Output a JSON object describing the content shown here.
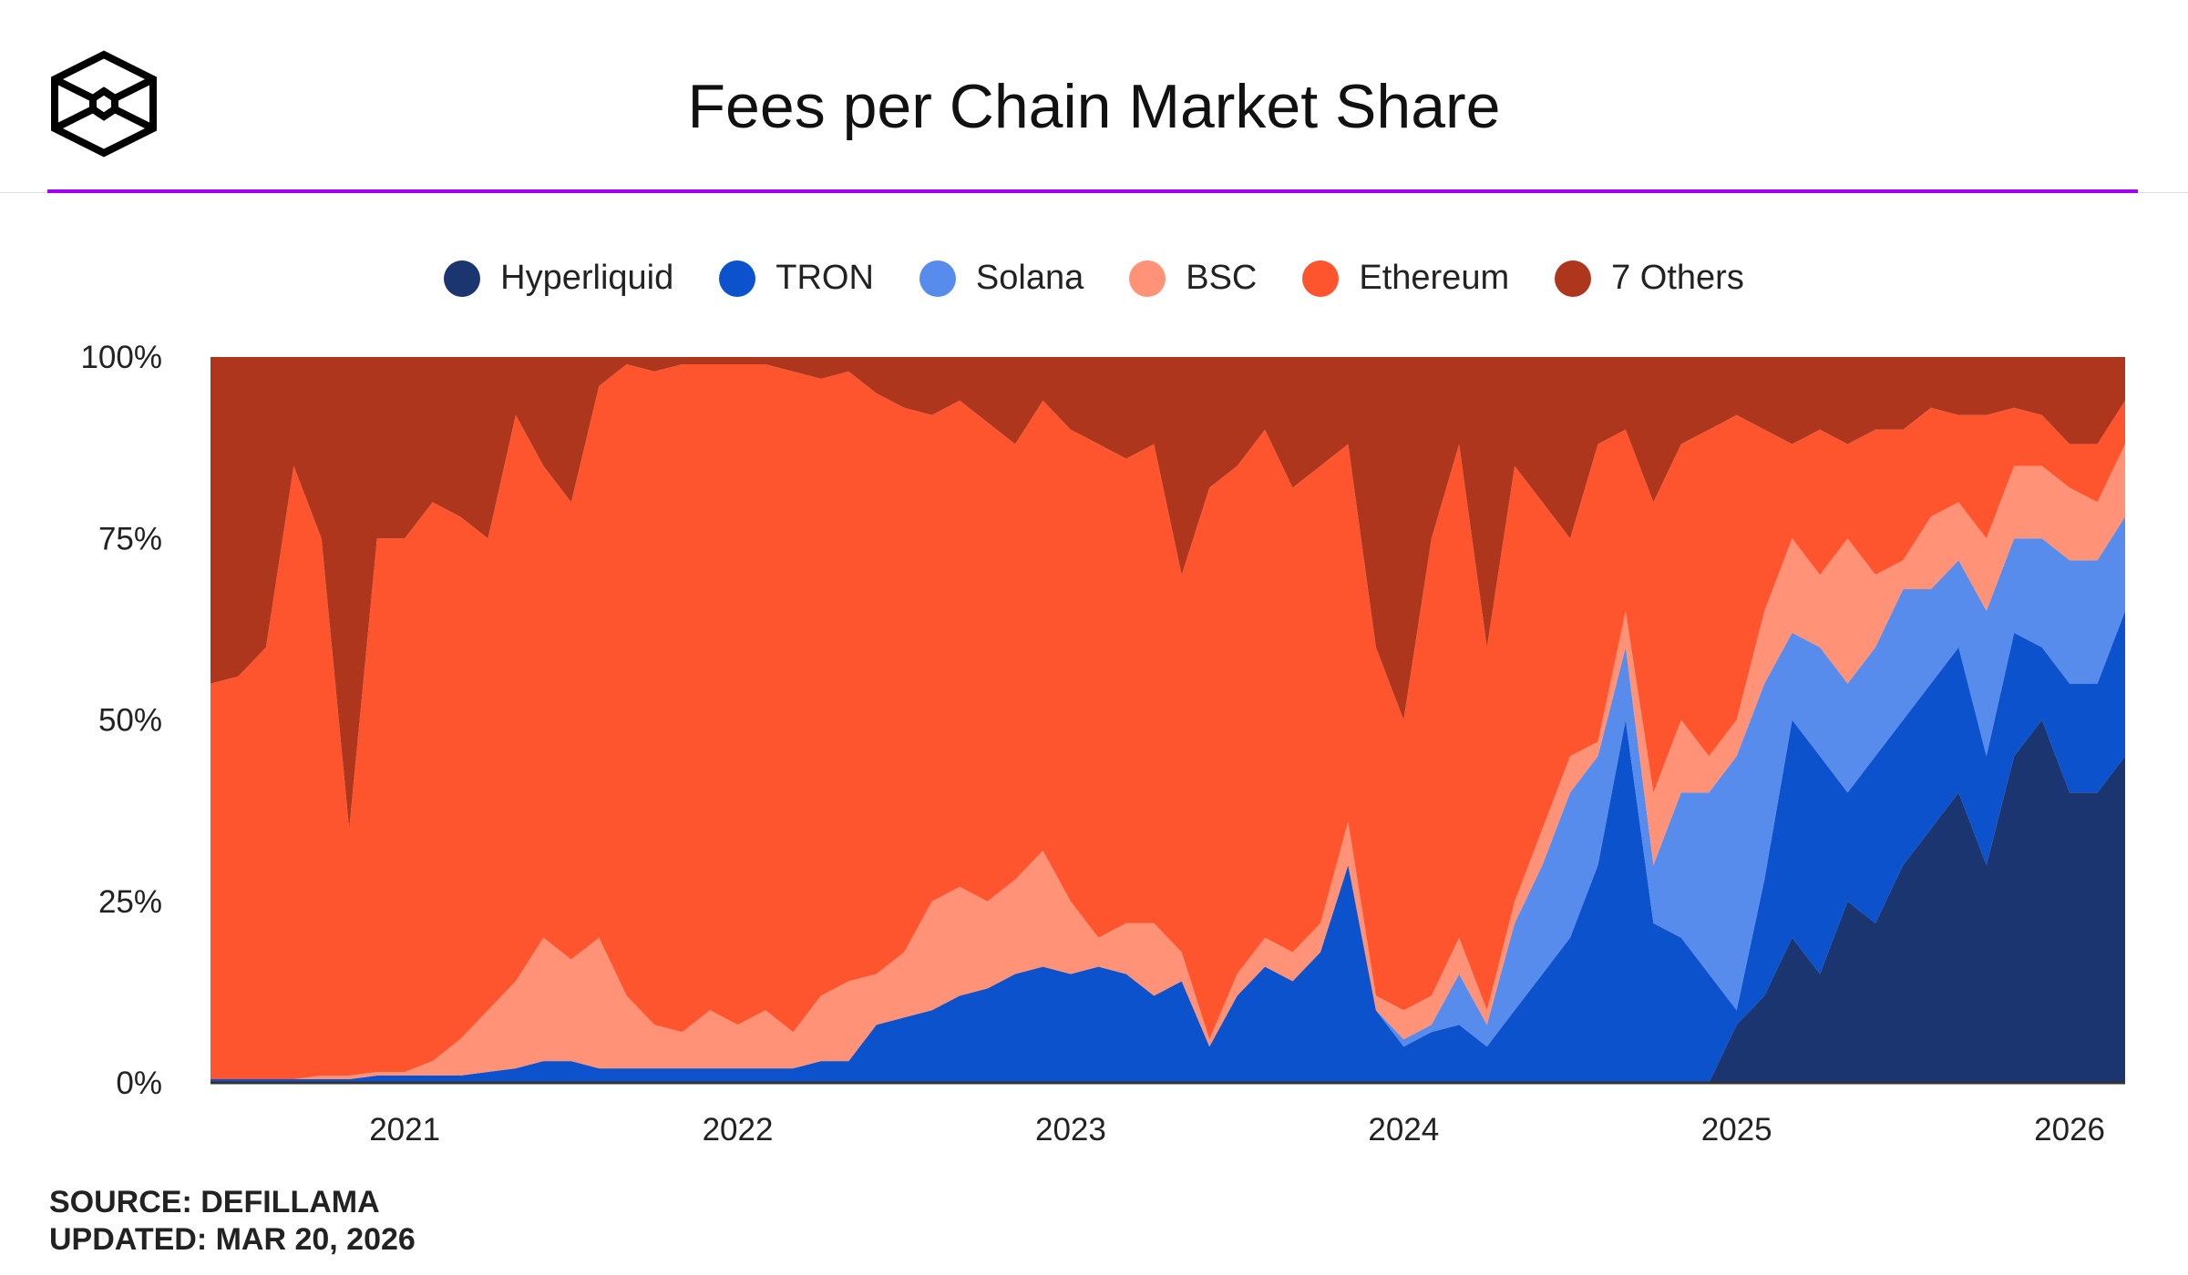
{
  "title": "Fees per Chain Market Share",
  "logo": {
    "name": "cube-logo"
  },
  "source": {
    "line1": "SOURCE: DEFILLAMA",
    "line2": "UPDATED: MAR 20, 2026"
  },
  "legend": [
    {
      "name": "Hyperliquid",
      "color": "#1a356f"
    },
    {
      "name": "TRON",
      "color": "#0c52cd"
    },
    {
      "name": "Solana",
      "color": "#578cec"
    },
    {
      "name": "BSC",
      "color": "#ff9277"
    },
    {
      "name": "Ethereum",
      "color": "#ff552e"
    },
    {
      "name": "7 Others",
      "color": "#ad361c"
    }
  ],
  "chart_data": {
    "type": "area",
    "stacked": true,
    "normalized": true,
    "title": "Fees per Chain Market Share",
    "xlabel": "",
    "ylabel": "",
    "ylim": [
      0,
      100
    ],
    "yticks": [
      "0%",
      "25%",
      "50%",
      "75%",
      "100%"
    ],
    "xticks": [
      "2021",
      "2022",
      "2023",
      "2024",
      "2025",
      "2026"
    ],
    "grid": false,
    "legend_position": "top",
    "x": [
      "2020-06",
      "2020-07",
      "2020-08",
      "2020-09",
      "2020-10",
      "2020-11",
      "2020-12",
      "2021-01",
      "2021-02",
      "2021-03",
      "2021-04",
      "2021-05",
      "2021-06",
      "2021-07",
      "2021-08",
      "2021-09",
      "2021-10",
      "2021-11",
      "2021-12",
      "2022-01",
      "2022-02",
      "2022-03",
      "2022-04",
      "2022-05",
      "2022-06",
      "2022-07",
      "2022-08",
      "2022-09",
      "2022-10",
      "2022-11",
      "2022-12",
      "2023-01",
      "2023-02",
      "2023-03",
      "2023-04",
      "2023-05",
      "2023-06",
      "2023-07",
      "2023-08",
      "2023-09",
      "2023-10",
      "2023-11",
      "2023-12",
      "2024-01",
      "2024-02",
      "2024-03",
      "2024-04",
      "2024-05",
      "2024-06",
      "2024-07",
      "2024-08",
      "2024-09",
      "2024-10",
      "2024-11",
      "2024-12",
      "2025-01",
      "2025-02",
      "2025-03",
      "2025-04",
      "2025-05",
      "2025-06",
      "2025-07",
      "2025-08",
      "2025-09",
      "2025-10",
      "2025-11",
      "2025-12",
      "2026-01",
      "2026-02",
      "2026-03"
    ],
    "series": [
      {
        "name": "Hyperliquid",
        "color": "#1a356f",
        "values": [
          0,
          0,
          0,
          0,
          0,
          0,
          0,
          0,
          0,
          0,
          0,
          0,
          0,
          0,
          0,
          0,
          0,
          0,
          0,
          0,
          0,
          0,
          0,
          0,
          0,
          0,
          0,
          0,
          0,
          0,
          0,
          0,
          0,
          0,
          0,
          0,
          0,
          0,
          0,
          0,
          0,
          0,
          0,
          0,
          0,
          0,
          0,
          0,
          0,
          0,
          0,
          0,
          0,
          0,
          0,
          8,
          12,
          20,
          15,
          25,
          22,
          30,
          35,
          40,
          30,
          45,
          50,
          40,
          40,
          45
        ]
      },
      {
        "name": "TRON",
        "color": "#0c52cd",
        "values": [
          0.5,
          0.5,
          0.5,
          0.5,
          0.5,
          0.5,
          1,
          1,
          1,
          1,
          1.5,
          2,
          3,
          3,
          2,
          2,
          2,
          2,
          2,
          2,
          2,
          2,
          3,
          3,
          8,
          9,
          10,
          12,
          13,
          15,
          16,
          15,
          16,
          15,
          12,
          14,
          5,
          12,
          16,
          14,
          18,
          30,
          10,
          5,
          7,
          8,
          5,
          10,
          15,
          20,
          30,
          50,
          22,
          20,
          15,
          2,
          16,
          30,
          30,
          15,
          23,
          20,
          20,
          20,
          15,
          17,
          10,
          15,
          15,
          20
        ]
      },
      {
        "name": "Solana",
        "color": "#578cec",
        "values": [
          0,
          0,
          0,
          0,
          0,
          0,
          0,
          0,
          0,
          0,
          0,
          0,
          0,
          0,
          0,
          0,
          0,
          0,
          0,
          0,
          0,
          0,
          0,
          0,
          0,
          0,
          0,
          0,
          0,
          0,
          0,
          0,
          0,
          0,
          0,
          0,
          0,
          0,
          0,
          0,
          0,
          0,
          0,
          1,
          1,
          7,
          3,
          12,
          15,
          20,
          15,
          10,
          8,
          20,
          25,
          35,
          27,
          12,
          15,
          15,
          15,
          18,
          13,
          12,
          20,
          13,
          15,
          17,
          17,
          13
        ]
      },
      {
        "name": "BSC",
        "color": "#ff9277",
        "values": [
          0,
          0,
          0,
          0,
          0.5,
          0.5,
          0.5,
          0.5,
          2,
          5,
          8.5,
          12,
          17,
          14,
          18,
          10,
          6,
          5,
          8,
          6,
          8,
          5,
          9,
          11,
          7,
          9,
          15,
          15,
          12,
          13,
          16,
          10,
          4,
          7,
          10,
          4,
          1,
          3,
          4,
          4,
          4,
          6,
          2,
          4,
          4,
          5,
          2,
          3,
          5,
          5,
          2,
          5,
          10,
          10,
          5,
          5,
          10,
          13,
          10,
          20,
          10,
          4,
          10,
          8,
          10,
          10,
          10,
          10,
          8,
          10
        ]
      },
      {
        "name": "Ethereum",
        "color": "#ff552e",
        "values": [
          54.5,
          55.5,
          59.5,
          84.5,
          74,
          34,
          73.5,
          73.5,
          77,
          72,
          65,
          78,
          65,
          63,
          76,
          87,
          90,
          92,
          89,
          91,
          89,
          91,
          85,
          84,
          80,
          75,
          67,
          67,
          66,
          60,
          62,
          65,
          68,
          64,
          66,
          52,
          76,
          70,
          70,
          64,
          63,
          52,
          48,
          40,
          63,
          68,
          50,
          60,
          45,
          30,
          41,
          25,
          40,
          38,
          45,
          42,
          25,
          13,
          20,
          13,
          20,
          18,
          15,
          12,
          17,
          8,
          7,
          6,
          8,
          6
        ]
      },
      {
        "name": "7 Others",
        "color": "#ad361c",
        "values": [
          45,
          44,
          40,
          15,
          25,
          65,
          25,
          25,
          20,
          22,
          25,
          8,
          15,
          20,
          4,
          1,
          2,
          1,
          1,
          1,
          1,
          2,
          3,
          2,
          5,
          7,
          8,
          6,
          9,
          12,
          6,
          10,
          12,
          14,
          12,
          30,
          18,
          15,
          10,
          18,
          15,
          12,
          40,
          50,
          25,
          12,
          40,
          15,
          20,
          25,
          12,
          10,
          20,
          12,
          10,
          8,
          10,
          12,
          10,
          12,
          10,
          10,
          7,
          8,
          8,
          7,
          8,
          12,
          12,
          6
        ]
      }
    ]
  }
}
